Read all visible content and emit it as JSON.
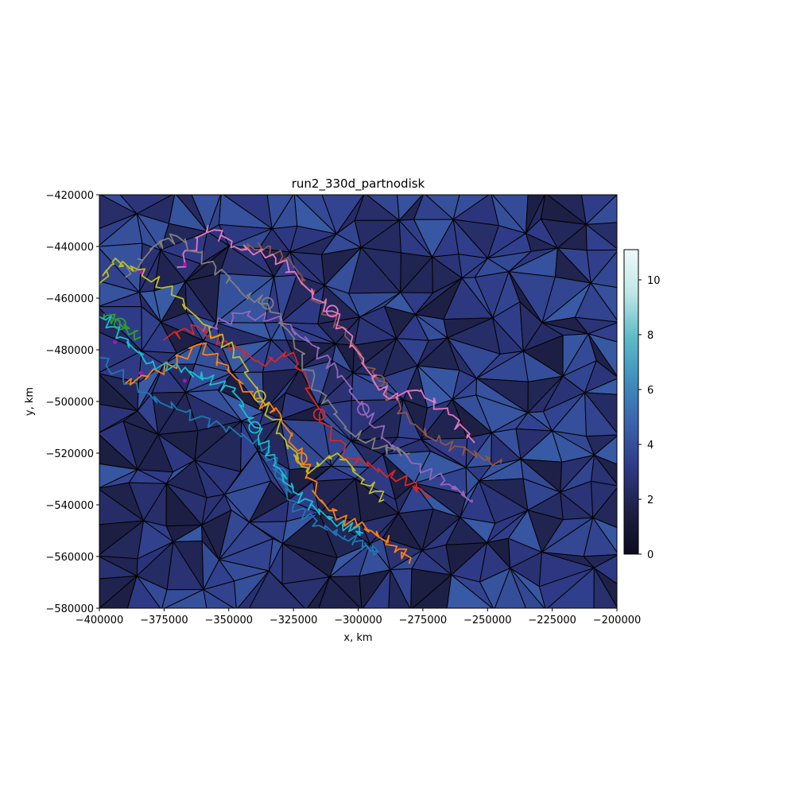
{
  "chart_data": {
    "type": "line",
    "title": "run2_330d_partnodisk",
    "xlabel": "x, km",
    "ylabel": "y, km",
    "xlim": [
      -400000,
      -200000
    ],
    "ylim": [
      -580000,
      -420000
    ],
    "x_ticks": [
      -400000,
      -375000,
      -350000,
      -325000,
      -300000,
      -275000,
      -250000,
      -225000,
      -200000
    ],
    "x_tick_labels": [
      "−400000",
      "−375000",
      "−350000",
      "−325000",
      "−300000",
      "−275000",
      "−250000",
      "−225000",
      "−200000"
    ],
    "y_ticks": [
      -420000,
      -440000,
      -460000,
      -480000,
      -500000,
      -520000,
      -540000,
      -560000,
      -580000
    ],
    "y_tick_labels": [
      "−420000",
      "−440000",
      "−460000",
      "−480000",
      "−500000",
      "−520000",
      "−540000",
      "−560000",
      "−580000"
    ],
    "grid": false,
    "colorbar": {
      "range": [
        0,
        11.1
      ],
      "ticks": [
        0,
        2,
        4,
        6,
        8,
        10
      ],
      "tick_labels": [
        "0",
        "2",
        "4",
        "6",
        "8",
        "10"
      ],
      "colormap_stops": [
        "#0b0b1e",
        "#1d1f44",
        "#2f3a86",
        "#3b62ad",
        "#3f8fbd",
        "#5fbcc9",
        "#bfe6e6",
        "#eefafa"
      ]
    },
    "background_mesh": {
      "type": "triangulation",
      "value_range": [
        1.5,
        4.5
      ],
      "edge_color": "#000000"
    },
    "series": [
      {
        "color": "#1f77b4",
        "x": [
          -400000,
          -385000,
          -370000,
          -352000,
          -338000,
          -330000,
          -325000,
          -315000,
          -305000,
          -298000,
          -292000
        ],
        "y": [
          -483000,
          -496000,
          -503000,
          -510000,
          -516000,
          -528000,
          -540000,
          -548000,
          -552000,
          -556000,
          -558000
        ]
      },
      {
        "color": "#ff7f0e",
        "x": [
          -390000,
          -375000,
          -362000,
          -350000,
          -340000,
          -330000,
          -322000,
          -315000,
          -305000,
          -295000,
          -285000,
          -280000
        ],
        "y": [
          -493000,
          -488000,
          -478000,
          -488000,
          -499000,
          -505000,
          -522000,
          -538000,
          -546000,
          -550000,
          -556000,
          -562000
        ]
      },
      {
        "color": "#2ca02c",
        "x": [
          -398000,
          -392000,
          -384000
        ],
        "y": [
          -466000,
          -470000,
          -475000
        ]
      },
      {
        "color": "#d62728",
        "x": [
          -375000,
          -362000,
          -350000,
          -338000,
          -325000,
          -315000,
          -303000,
          -292000,
          -280000,
          -272000
        ],
        "y": [
          -476000,
          -471000,
          -478000,
          -485000,
          -481000,
          -505000,
          -522000,
          -526000,
          -532000,
          -537000
        ]
      },
      {
        "color": "#9467bd",
        "x": [
          -360000,
          -345000,
          -330000,
          -318000,
          -308000,
          -298000,
          -288000,
          -276000,
          -265000,
          -256000
        ],
        "y": [
          -473000,
          -466000,
          -469000,
          -478000,
          -488000,
          -503000,
          -516000,
          -525000,
          -532000,
          -538000
        ]
      },
      {
        "color": "#8c564b",
        "x": [
          -345000,
          -335000,
          -325000,
          -315000,
          -305000,
          -292000,
          -280000,
          -268000,
          -256000,
          -245000
        ],
        "y": [
          -441000,
          -440000,
          -448000,
          -462000,
          -474000,
          -492000,
          -508000,
          -516000,
          -520000,
          -524000
        ]
      },
      {
        "color": "#e377c2",
        "x": [
          -370000,
          -358000,
          -348000,
          -333000,
          -322000,
          -310000,
          -298000,
          -288000,
          -276000,
          -265000,
          -255000
        ],
        "y": [
          -448000,
          -432000,
          -440000,
          -443000,
          -454000,
          -465000,
          -485000,
          -499000,
          -496000,
          -505000,
          -516000
        ]
      },
      {
        "color": "#7f7f7f",
        "x": [
          -390000,
          -380000,
          -370000,
          -355000,
          -345000,
          -335000,
          -325000,
          -315000,
          -305000,
          -292000,
          -280000
        ],
        "y": [
          -452000,
          -441000,
          -436000,
          -448000,
          -458000,
          -462000,
          -476000,
          -496000,
          -510000,
          -518000,
          -520000
        ]
      },
      {
        "color": "#bcbd22",
        "x": [
          -400000,
          -395000,
          -385000,
          -372000,
          -360000,
          -348000,
          -338000,
          -328000,
          -320000,
          -308000,
          -298000,
          -290000
        ],
        "y": [
          -455000,
          -446000,
          -449000,
          -458000,
          -470000,
          -480000,
          -498000,
          -515000,
          -527000,
          -520000,
          -530000,
          -538000
        ]
      },
      {
        "color": "#17becf",
        "x": [
          -400000,
          -392000,
          -380000,
          -368000,
          -358000,
          -348000,
          -340000,
          -332000,
          -325000,
          -316000,
          -306000,
          -298000
        ],
        "y": [
          -465000,
          -475000,
          -485000,
          -488000,
          -491000,
          -496000,
          -510000,
          -524000,
          -535000,
          -542000,
          -548000,
          -551000
        ]
      }
    ],
    "start_markers": {
      "color": "#b40fb4",
      "x": [
        -394000,
        -384000,
        -384000,
        -367000,
        -367000
      ],
      "y": [
        -477000,
        -450000,
        -489000,
        -447000,
        -492000
      ]
    }
  }
}
